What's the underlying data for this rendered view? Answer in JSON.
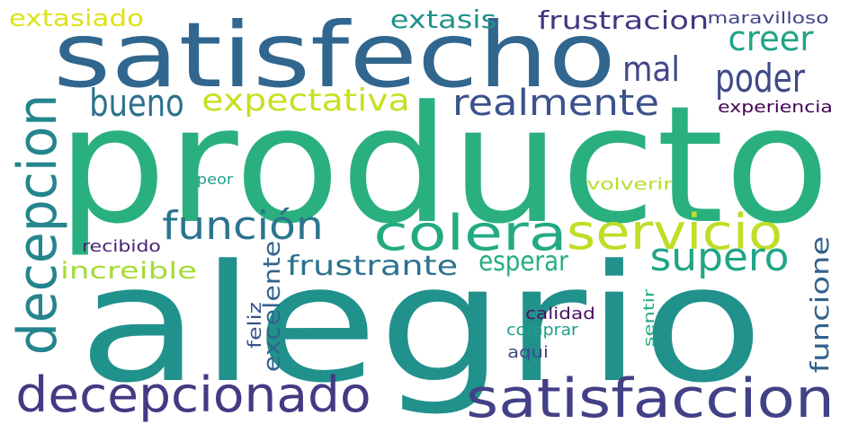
{
  "words": [
    {
      "id": "producto",
      "text": "producto",
      "color": "#2ab07f"
    },
    {
      "id": "alegrio",
      "text": "alegrio",
      "color": "#21918c"
    },
    {
      "id": "satisfecho",
      "text": "satisfecho",
      "color": "#31668e"
    },
    {
      "id": "satisfaccion",
      "text": "satisfaccion",
      "color": "#424086"
    },
    {
      "id": "decepcionado",
      "text": "decepcionado",
      "color": "#443a83"
    },
    {
      "id": "decepcion",
      "text": "decepcion",
      "color": "#25858e"
    },
    {
      "id": "colera",
      "text": "colera",
      "color": "#24aa83"
    },
    {
      "id": "servicio",
      "text": "servicio",
      "color": "#bddf26"
    },
    {
      "id": "funcion",
      "text": "función",
      "color": "#2b758e"
    },
    {
      "id": "supero",
      "text": "supero",
      "color": "#21a585"
    },
    {
      "id": "realmente",
      "text": "realmente",
      "color": "#3b528b"
    },
    {
      "id": "expectativa",
      "text": "expectativa",
      "color": "#c8e020"
    },
    {
      "id": "bueno",
      "text": "bueno",
      "color": "#2c718e"
    },
    {
      "id": "poder",
      "text": "poder",
      "color": "#3e4a89"
    },
    {
      "id": "creer",
      "text": "creer",
      "color": "#20a386"
    },
    {
      "id": "mal",
      "text": "mal",
      "color": "#404688"
    },
    {
      "id": "frustracion",
      "text": "frustracion",
      "color": "#453581"
    },
    {
      "id": "extasis",
      "text": "extasis",
      "color": "#21918c"
    },
    {
      "id": "extasiado",
      "text": "extasiado",
      "color": "#dde318"
    },
    {
      "id": "maravilloso",
      "text": "maravilloso",
      "color": "#404688"
    },
    {
      "id": "experiencia",
      "text": "experiencia",
      "color": "#440154"
    },
    {
      "id": "funcione",
      "text": "funcione",
      "color": "#34618d"
    },
    {
      "id": "frustrante",
      "text": "frustrante",
      "color": "#2c728e"
    },
    {
      "id": "esperar",
      "text": "esperar",
      "color": "#27ad81"
    },
    {
      "id": "increible",
      "text": "increible",
      "color": "#a5db36"
    },
    {
      "id": "excelente",
      "text": "excelente",
      "color": "#33638d"
    },
    {
      "id": "feliz",
      "text": "feliz",
      "color": "#3b528b"
    },
    {
      "id": "recibido",
      "text": "recibido",
      "color": "#482374"
    },
    {
      "id": "peor",
      "text": "peor",
      "color": "#1fa088"
    },
    {
      "id": "volverir",
      "text": "volverir",
      "color": "#b5de2b"
    },
    {
      "id": "calidad",
      "text": "calidad",
      "color": "#471063"
    },
    {
      "id": "comprar",
      "text": "comprar",
      "color": "#1f9e89"
    },
    {
      "id": "aqui",
      "text": "aqui",
      "color": "#3e4989"
    },
    {
      "id": "sentir",
      "text": "sentir",
      "color": "#25ab82"
    }
  ]
}
